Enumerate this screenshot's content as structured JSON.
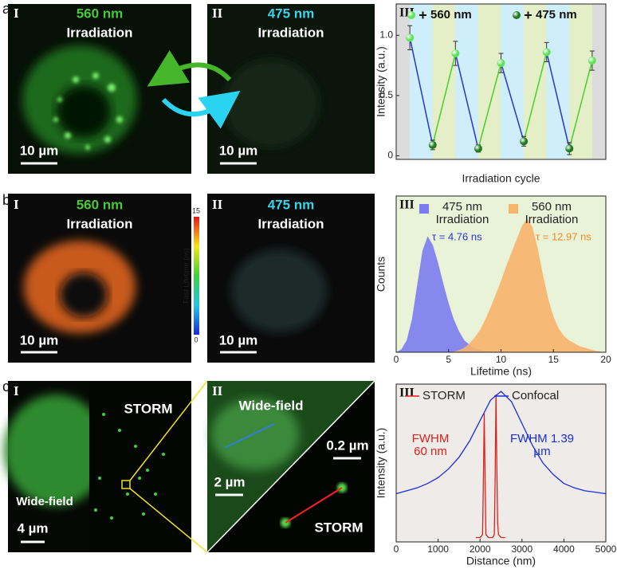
{
  "figure": {
    "a": {
      "letter": "a",
      "image_1": {
        "numeral": "I",
        "wavelength": "560 nm",
        "caption": "Irradiation",
        "scale_bar": "10 µm"
      },
      "image_2": {
        "numeral": "II",
        "wavelength": "475 nm",
        "caption": "Irradiation",
        "scale_bar": "10 µm"
      }
    },
    "b": {
      "letter": "b",
      "image_1": {
        "numeral": "I",
        "wavelength": "560 nm",
        "caption": "Irradiation",
        "scale_bar": "10 µm"
      },
      "colorbar": {
        "label": "Fast Lifetime (ns)",
        "ticks": [
          0,
          15
        ]
      },
      "image_2": {
        "numeral": "II",
        "wavelength": "475 nm",
        "caption": "Irradiation",
        "scale_bar": "10 µm"
      }
    },
    "c": {
      "letter": "c",
      "image_1": {
        "numeral": "I",
        "labels": [
          "STORM",
          "Wide-field"
        ],
        "scale_bar": "4 µm"
      },
      "image_2": {
        "numeral": "II",
        "labels": [
          "Wide-field",
          "STORM"
        ],
        "scale_bars": [
          "2 µm",
          "0.2 µm"
        ]
      }
    }
  },
  "chart_data": [
    {
      "type": "line",
      "title": "III",
      "x_label": "Irradiation cycle",
      "y_label": "Intensity (a.u.)",
      "xlim": [
        0.4,
        9.6
      ],
      "ylim": [
        -0.03,
        1.26
      ],
      "yticks": [
        0,
        0.5,
        {
          "value": 1,
          "label": "1.0"
        }
      ],
      "line_colors": {
        "falling": "#2a35d0",
        "rising": "#47d02a"
      },
      "series": [
        {
          "name": "560 nm",
          "color": "#5ee35a",
          "marker": true,
          "x": [
            1,
            3,
            5,
            7,
            9
          ],
          "values": [
            0.98,
            0.85,
            0.77,
            0.86,
            0.79
          ],
          "errors": [
            0.1,
            0.1,
            0.08,
            0.08,
            0.08
          ]
        },
        {
          "name": "475 nm",
          "color": "#1f7a1f",
          "marker": true,
          "x": [
            2,
            4,
            6,
            8
          ],
          "values": [
            0.09,
            0.06,
            0.12,
            0.06
          ],
          "errors": [
            0.04,
            0.03,
            0.04,
            0.05
          ]
        }
      ]
    },
    {
      "type": "area",
      "title": "III",
      "x_label": "Lifetime (ns)",
      "y_label": "Counts",
      "xlim": [
        0,
        20
      ],
      "ylim": [
        0,
        1.05
      ],
      "xticks": [
        0,
        5,
        10,
        15,
        20
      ],
      "annotations": [
        {
          "text": "τ = 4.76 ns",
          "color": "#2b33d6"
        },
        {
          "text": "τ = 12.97 ns",
          "color": "#f08a20"
        }
      ],
      "series": [
        {
          "name": "475 nm Irradiation",
          "color": "#7b7cf0",
          "x": [
            0,
            0.5,
            1,
            1.5,
            2,
            2.5,
            3,
            3.5,
            4,
            4.5,
            5,
            5.5,
            6,
            6.5,
            7,
            7.5,
            8,
            8.5,
            9,
            9.5,
            10,
            10.5,
            11,
            11.5,
            12,
            12.5,
            13,
            13.5,
            14,
            14.5,
            15,
            15.5,
            16,
            16.5,
            17,
            17.5,
            18,
            18.5,
            19,
            19.5,
            20
          ],
          "values": [
            0,
            0.02,
            0.08,
            0.22,
            0.45,
            0.68,
            0.78,
            0.72,
            0.6,
            0.46,
            0.33,
            0.22,
            0.14,
            0.08,
            0.05,
            0.03,
            0.015,
            0.008,
            0.004,
            0.002,
            0,
            0,
            0,
            0,
            0,
            0,
            0,
            0,
            0,
            0,
            0,
            0,
            0,
            0,
            0,
            0,
            0,
            0,
            0,
            0,
            0
          ]
        },
        {
          "name": "560 nm Irradiation",
          "color": "#f7b46c",
          "x": [
            0,
            0.5,
            1,
            1.5,
            2,
            2.5,
            3,
            3.5,
            4,
            4.5,
            5,
            5.5,
            6,
            6.5,
            7,
            7.5,
            8,
            8.5,
            9,
            9.5,
            10,
            10.5,
            11,
            11.5,
            12,
            12.5,
            13,
            13.5,
            14,
            14.5,
            15,
            15.5,
            16,
            16.5,
            17,
            17.5,
            18,
            18.5,
            19,
            19.5,
            20
          ],
          "values": [
            0,
            0,
            0,
            0,
            0,
            0,
            0,
            0,
            0,
            0,
            0,
            0.005,
            0.015,
            0.03,
            0.06,
            0.1,
            0.15,
            0.22,
            0.3,
            0.39,
            0.48,
            0.58,
            0.67,
            0.76,
            0.85,
            0.9,
            0.84,
            0.7,
            0.52,
            0.36,
            0.24,
            0.16,
            0.11,
            0.08,
            0.06,
            0.04,
            0.03,
            0.02,
            0.01,
            0.005,
            0
          ]
        }
      ]
    },
    {
      "type": "line",
      "title": "III",
      "x_label": "Distance (nm)",
      "y_label": "Intensity (a.u.)",
      "xlim": [
        0,
        5000
      ],
      "ylim": [
        -0.03,
        1.05
      ],
      "xticks": [
        0,
        1000,
        2000,
        3000,
        4000,
        5000
      ],
      "annotations": [
        {
          "text": "FWHM 60 nm",
          "color": "#e0201b"
        },
        {
          "text": "FWHM 1.39 µm",
          "color": "#1a2ee0"
        }
      ],
      "series": [
        {
          "name": "STORM",
          "color": "#e0201b",
          "x": [
            1900,
            2000,
            2060,
            2080,
            2100,
            2120,
            2140,
            2200,
            2300,
            2340,
            2360,
            2380,
            2400,
            2420,
            2440,
            2500,
            2600
          ],
          "values": [
            0,
            0,
            0.02,
            0.4,
            0.85,
            0.4,
            0.02,
            0,
            0,
            0.02,
            0.4,
            0.98,
            0.5,
            0.1,
            0.02,
            0,
            0
          ]
        },
        {
          "name": "Confocal",
          "color": "#1a2ee0",
          "x": [
            0,
            250,
            500,
            750,
            1000,
            1250,
            1500,
            1750,
            2000,
            2250,
            2500,
            2750,
            3000,
            3250,
            3500,
            3750,
            4000,
            4250,
            4500,
            4750,
            5000
          ],
          "values": [
            0.3,
            0.32,
            0.34,
            0.37,
            0.41,
            0.47,
            0.55,
            0.66,
            0.8,
            0.94,
            1.0,
            0.93,
            0.78,
            0.63,
            0.51,
            0.43,
            0.37,
            0.34,
            0.32,
            0.31,
            0.3
          ]
        }
      ]
    }
  ]
}
